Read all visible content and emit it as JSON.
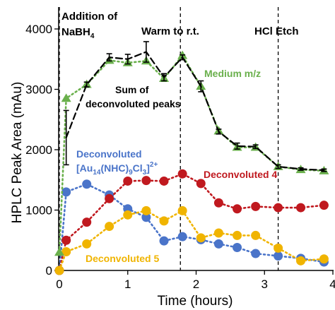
{
  "chart_data": {
    "type": "line",
    "xlabel": "Time (hours)",
    "ylabel": "HPLC Peak Area (mAu)",
    "xlim": [
      0,
      4
    ],
    "ylim": [
      0,
      4000
    ],
    "xticks": [
      "0",
      "1",
      "2",
      "3",
      "4"
    ],
    "yticks": [
      "0",
      "1000",
      "2000",
      "3000",
      "4000"
    ],
    "grid": false,
    "events": [
      {
        "x": 0,
        "label": "Addition of NaBH",
        "subscript": "4"
      },
      {
        "x": 1.77,
        "label": "Warm to r.t."
      },
      {
        "x": 3.2,
        "label": "HCl Etch"
      }
    ],
    "series": [
      {
        "name": "Sum of deconvoluted peaks",
        "color": "#000000",
        "style": "dashed",
        "x": [
          0.1,
          0.4,
          0.73,
          1.0,
          1.27,
          1.53,
          1.8,
          2.07,
          2.33,
          2.6,
          2.87,
          3.2,
          3.53,
          3.87
        ],
        "values": [
          2200,
          3080,
          3530,
          3500,
          3620,
          3200,
          3530,
          3050,
          2300,
          2060,
          2050,
          1720,
          1680,
          1660
        ],
        "error": [
          450,
          40,
          60,
          80,
          170,
          60,
          40,
          90,
          40,
          50,
          30,
          30,
          20,
          20
        ]
      },
      {
        "name": "Medium m/z",
        "color": "#6ab04c",
        "style": "dotted",
        "marker": "triangle",
        "x": [
          0.0,
          0.1,
          0.4,
          0.73,
          1.0,
          1.27,
          1.53,
          1.8,
          2.07,
          2.33,
          2.6,
          2.87,
          3.2,
          3.53,
          3.87
        ],
        "values": [
          300,
          2850,
          3080,
          3480,
          3440,
          3470,
          3180,
          3560,
          3050,
          2310,
          2040,
          2040,
          1720,
          1670,
          1650
        ]
      },
      {
        "name": "Deconvoluted [Au14(NHC)9Cl3]2+",
        "color": "#4a74c9",
        "style": "dotted",
        "marker": "circle",
        "x": [
          0.0,
          0.1,
          0.4,
          0.73,
          1.0,
          1.27,
          1.53,
          1.8,
          2.07,
          2.33,
          2.6,
          2.87,
          3.2,
          3.53,
          3.87
        ],
        "values": [
          0,
          1300,
          1430,
          1250,
          1020,
          880,
          490,
          560,
          510,
          440,
          380,
          280,
          240,
          200,
          140
        ]
      },
      {
        "name": "Deconvoluted 4",
        "color": "#c0191f",
        "style": "dotted",
        "marker": "circle",
        "x": [
          0.0,
          0.1,
          0.4,
          0.73,
          1.0,
          1.27,
          1.53,
          1.8,
          2.07,
          2.33,
          2.6,
          2.87,
          3.2,
          3.53,
          3.87
        ],
        "values": [
          0,
          500,
          800,
          1190,
          1480,
          1490,
          1480,
          1600,
          1440,
          1120,
          1020,
          1060,
          1040,
          1040,
          1080
        ]
      },
      {
        "name": "Deconvoluted 5",
        "color": "#f0b400",
        "style": "dotted",
        "marker": "circle",
        "x": [
          0.0,
          0.1,
          0.4,
          0.73,
          1.0,
          1.27,
          1.53,
          1.8,
          2.07,
          2.33,
          2.6,
          2.87,
          3.2,
          3.53,
          3.87
        ],
        "values": [
          0,
          310,
          440,
          730,
          920,
          990,
          820,
          990,
          540,
          620,
          580,
          580,
          370,
          160,
          190
        ]
      }
    ],
    "annotations": {
      "sum_line1": "Sum of",
      "sum_line2": "deconvoluted peaks",
      "medium": "Medium m/z",
      "decon_au_line1": "Deconvoluted",
      "decon_au_line2_a": "[Au",
      "decon_au_line2_sub1": "14",
      "decon_au_line2_b": "(NHC)",
      "decon_au_line2_sub2": "9",
      "decon_au_line2_c": "Cl",
      "decon_au_line2_sub3": "3",
      "decon_au_line2_d": "]",
      "decon_au_line2_sup": "2+",
      "decon4": "Deconvoluted 4",
      "decon5": "Deconvoluted 5",
      "event1_line1": "Addition of",
      "event1_line2": "NaBH",
      "event1_sub": "4",
      "event2": "Warm to r.t.",
      "event3": "HCl Etch"
    }
  }
}
